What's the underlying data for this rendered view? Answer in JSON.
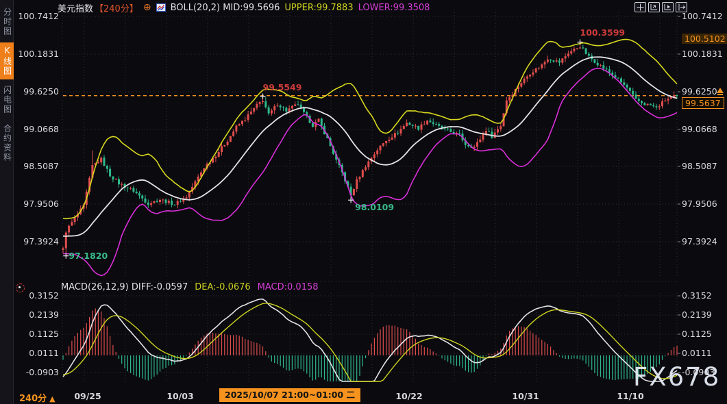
{
  "app": {
    "symbol": "美元指数",
    "period_tag": "【240分】",
    "add_icon_glyph": "⊕",
    "boll_label": "BOLL(20,2) MID:99.5696",
    "boll_upper": "UPPER:99.7883",
    "boll_lower": "LOWER:99.3508"
  },
  "sidebar": {
    "tabs": [
      {
        "label": "分时图",
        "active": false
      },
      {
        "label": "K线图",
        "active": true
      },
      {
        "label": "闪电图",
        "active": false
      },
      {
        "label": "合约资料",
        "active": false
      }
    ]
  },
  "toolbar": {
    "icons": [
      "crosshair",
      "axis-zoom",
      "playback",
      "pan-right"
    ]
  },
  "main_chart": {
    "axis": [
      "100.7412",
      "100.1831",
      "99.6250",
      "99.0668",
      "98.5087",
      "97.9506",
      "97.3924"
    ],
    "price_tag": "99.5637",
    "high_tag": "100.5102",
    "annotations": [
      {
        "text": "99.5549",
        "color": "#cc3a3a",
        "index": 68,
        "price": 99.5549,
        "anchor": "above"
      },
      {
        "text": "100.3599",
        "color": "#cc3a3a",
        "index": 176,
        "price": 100.3599,
        "anchor": "above"
      },
      {
        "text": "98.0109",
        "color": "#3aba8b",
        "index": 98,
        "price": 98.0109,
        "anchor": "below"
      },
      {
        "text": "97.1820",
        "color": "#3aba8b",
        "index": 1,
        "price": 97.182,
        "anchor": "right"
      }
    ]
  },
  "macd_panel": {
    "label": "MACD(26,12,9) DIFF:-0.0597",
    "dea": "DEA:-0.0676",
    "macd": "MACD:0.0158",
    "axis": [
      "0.3152",
      "0.2139",
      "0.1125",
      "0.0111",
      "-0.0903"
    ]
  },
  "bottom": {
    "period": "240分",
    "period_arrow": "▲",
    "dates": [
      "09/25",
      "10/03",
      "10/22",
      "10/31",
      "11/10"
    ],
    "range_box": "2025/10/07 21:00~01:00 二"
  },
  "watermark": "FX678",
  "colors": {
    "up": "#e14d4d",
    "down": "#2eb98a",
    "boll_upper": "#d8d81f",
    "boll_mid": "#e4e4e8",
    "boll_lower": "#d92ed9",
    "macd_diff": "#e4e4e8",
    "macd_dea": "#cdd21f",
    "accent_orange": "#f6921e",
    "grid": "#2c2c35"
  },
  "chart_data": {
    "type": "candlestick",
    "symbol": "美元指数",
    "interval": "240分",
    "bar_count": 210,
    "y_axis_ticks": [
      100.7412,
      100.1831,
      99.625,
      99.0668,
      98.5087,
      97.9506,
      97.3924
    ],
    "x_axis_ticks": [
      "09/25",
      "10/03",
      "10/22",
      "10/31",
      "11/10"
    ],
    "overlays": {
      "bollinger": {
        "period": 20,
        "mult": 2,
        "mid": 99.5696,
        "upper": 99.7883,
        "lower": 99.3508
      }
    },
    "indicators": {
      "macd": {
        "fast": 12,
        "slow": 26,
        "signal": 9,
        "diff": -0.0597,
        "dea": -0.0676,
        "macd": 0.0158,
        "axis_ticks": [
          0.3152,
          0.2139,
          0.1125,
          0.0111,
          -0.0903
        ]
      }
    },
    "key_prices": {
      "last": 99.5637,
      "period_high": 100.3599,
      "period_low": 97.182,
      "swing_high": 99.5549,
      "swing_low": 98.0109,
      "upper_band_tag": 100.5102
    },
    "key_markers": [
      {
        "index": 1,
        "price": 97.182
      },
      {
        "index": 68,
        "price": 99.5549
      },
      {
        "index": 98,
        "price": 98.0109
      },
      {
        "index": 176,
        "price": 100.3599
      }
    ],
    "wick_overrides": {
      "1": {
        "low": 97.182
      },
      "10": {
        "high": 98.75
      },
      "68": {
        "high": 99.5549
      },
      "98": {
        "low": 98.0109
      },
      "176": {
        "high": 100.3599
      }
    },
    "price_keypoints": [
      [
        0,
        97.28
      ],
      [
        1,
        97.55
      ],
      [
        3,
        97.68
      ],
      [
        5,
        97.8
      ],
      [
        7,
        97.92
      ],
      [
        10,
        98.52
      ],
      [
        13,
        98.62
      ],
      [
        16,
        98.38
      ],
      [
        19,
        98.26
      ],
      [
        24,
        98.15
      ],
      [
        29,
        97.96
      ],
      [
        33,
        98.02
      ],
      [
        38,
        97.95
      ],
      [
        42,
        98.06
      ],
      [
        45,
        98.28
      ],
      [
        48,
        98.5
      ],
      [
        52,
        98.68
      ],
      [
        56,
        98.9
      ],
      [
        59,
        99.1
      ],
      [
        62,
        99.22
      ],
      [
        66,
        99.42
      ],
      [
        68,
        99.5
      ],
      [
        70,
        99.28
      ],
      [
        73,
        99.44
      ],
      [
        76,
        99.34
      ],
      [
        80,
        99.44
      ],
      [
        82,
        99.3
      ],
      [
        85,
        99.12
      ],
      [
        87,
        99.2
      ],
      [
        90,
        98.92
      ],
      [
        93,
        98.6
      ],
      [
        95,
        98.42
      ],
      [
        98,
        98.08
      ],
      [
        100,
        98.3
      ],
      [
        103,
        98.52
      ],
      [
        107,
        98.76
      ],
      [
        110,
        98.9
      ],
      [
        114,
        99.02
      ],
      [
        117,
        99.16
      ],
      [
        121,
        99.08
      ],
      [
        124,
        99.2
      ],
      [
        128,
        99.1
      ],
      [
        131,
        99.04
      ],
      [
        135,
        98.98
      ],
      [
        137,
        98.84
      ],
      [
        140,
        98.8
      ],
      [
        142,
        98.92
      ],
      [
        144,
        99.06
      ],
      [
        146,
        98.96
      ],
      [
        149,
        99.12
      ],
      [
        151,
        99.5
      ],
      [
        153,
        99.6
      ],
      [
        156,
        99.76
      ],
      [
        159,
        99.9
      ],
      [
        163,
        100.02
      ],
      [
        165,
        100.12
      ],
      [
        169,
        100.06
      ],
      [
        172,
        100.2
      ],
      [
        176,
        100.3
      ],
      [
        179,
        100.14
      ],
      [
        182,
        100.04
      ],
      [
        185,
        99.94
      ],
      [
        188,
        99.84
      ],
      [
        192,
        99.68
      ],
      [
        195,
        99.5
      ],
      [
        198,
        99.44
      ],
      [
        200,
        99.42
      ],
      [
        202,
        99.38
      ],
      [
        205,
        99.5
      ],
      [
        209,
        99.5637
      ]
    ]
  }
}
